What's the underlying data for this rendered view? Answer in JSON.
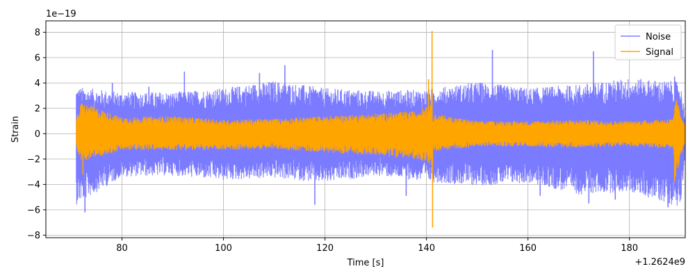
{
  "chart_data": {
    "type": "line",
    "xlabel": "Time [s]",
    "ylabel": "Strain",
    "x_offset_label": "+1.2624e9",
    "y_scale_label": "1e−19",
    "xlim": [
      65,
      191
    ],
    "ylim": [
      -8.2,
      8.9
    ],
    "x_ticks": [
      80,
      100,
      120,
      140,
      160,
      180
    ],
    "y_ticks": [
      -8,
      -6,
      -4,
      -2,
      0,
      2,
      4,
      6,
      8
    ],
    "x_tick_labels": [
      "80",
      "100",
      "120",
      "140",
      "160",
      "180"
    ],
    "y_tick_labels": [
      "−8",
      "−6",
      "−4",
      "−2",
      "0",
      "2",
      "4",
      "6",
      "8"
    ],
    "grid": true,
    "legend_position": "top-right",
    "series": [
      {
        "name": "Noise",
        "color": "#7b7bff",
        "x_range": [
          71,
          191
        ],
        "envelope_x": [
          71,
          80,
          90,
          100,
          110,
          120,
          130,
          140,
          150,
          160,
          170,
          180,
          190,
          191
        ],
        "envelope_upper": [
          3.7,
          3.3,
          3.3,
          3.6,
          4.2,
          3.6,
          3.4,
          3.5,
          4.1,
          3.6,
          3.9,
          4.4,
          4.1,
          1.6
        ],
        "envelope_lower": [
          -5.6,
          -3.4,
          -3.3,
          -3.7,
          -3.5,
          -3.9,
          -3.3,
          -3.8,
          -4.1,
          -3.9,
          -4.8,
          -4.6,
          -5.8,
          -1.8
        ],
        "peaks": [
          {
            "x": 72.7,
            "y": -6.2
          },
          {
            "x": 78.1,
            "y": 4.0
          },
          {
            "x": 85.3,
            "y": 3.7
          },
          {
            "x": 92.3,
            "y": 4.9
          },
          {
            "x": 107.1,
            "y": 4.8
          },
          {
            "x": 112.1,
            "y": 5.4
          },
          {
            "x": 118.0,
            "y": -5.6
          },
          {
            "x": 136.0,
            "y": -4.9
          },
          {
            "x": 153.0,
            "y": 6.6
          },
          {
            "x": 162.4,
            "y": -4.9
          },
          {
            "x": 172.0,
            "y": -5.5
          },
          {
            "x": 172.9,
            "y": 6.5
          },
          {
            "x": 177.2,
            "y": -5.2
          },
          {
            "x": 187.6,
            "y": -5.8
          },
          {
            "x": 188.9,
            "y": 4.5
          }
        ]
      },
      {
        "name": "Signal",
        "color": "#ffa500",
        "x_range": [
          71,
          191
        ],
        "envelope_x": [
          71,
          72,
          80,
          90,
          100,
          110,
          120,
          130,
          138,
          140.5,
          141.1,
          141.2,
          150,
          160,
          170,
          180,
          188.7,
          189,
          191
        ],
        "envelope_upper": [
          1.2,
          2.5,
          1.3,
          1.4,
          1.1,
          1.2,
          1.4,
          1.6,
          1.8,
          2.5,
          3.2,
          1.6,
          1.0,
          1.0,
          1.1,
          1.0,
          1.2,
          3.0,
          0.7
        ],
        "envelope_lower": [
          -1.2,
          -2.2,
          -1.3,
          -1.3,
          -1.3,
          -1.2,
          -1.5,
          -1.7,
          -2.0,
          -2.3,
          -3.0,
          -1.4,
          -1.0,
          -1.0,
          -1.1,
          -1.0,
          -1.2,
          -3.7,
          -0.6
        ],
        "peaks": [
          {
            "x": 141.1,
            "y": 8.1
          },
          {
            "x": 141.2,
            "y": -7.4
          },
          {
            "x": 140.4,
            "y": 4.3
          },
          {
            "x": 72.3,
            "y": -3.2
          },
          {
            "x": 188.9,
            "y": -3.8
          }
        ]
      }
    ]
  }
}
